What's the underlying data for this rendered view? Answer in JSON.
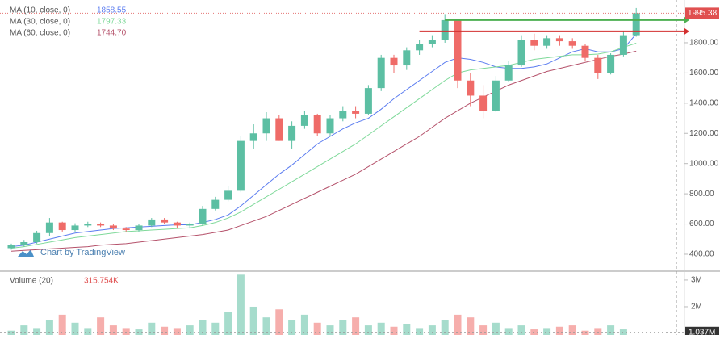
{
  "chart_data": {
    "type": "candlestick",
    "watermark": "Chart by TradingView",
    "ylim": [
      293,
      2083
    ],
    "yticks": [
      {
        "value": 400,
        "label": "400.00"
      },
      {
        "value": 600,
        "label": "600.00"
      },
      {
        "value": 800,
        "label": "800.00"
      },
      {
        "value": 1000,
        "label": "1000.00"
      },
      {
        "value": 1200,
        "label": "1200.00"
      },
      {
        "value": 1400,
        "label": "1400.00"
      },
      {
        "value": 1600,
        "label": "1600.00"
      },
      {
        "value": 1800,
        "label": "1800.00"
      }
    ],
    "up_color": "#5cbfa3",
    "down_color": "#ef6b68",
    "open": [
      440,
      460,
      480,
      540,
      610,
      560,
      590,
      600,
      590,
      570,
      560,
      590,
      630,
      610,
      590,
      600,
      700,
      760,
      820,
      1150,
      1200,
      1300,
      1150,
      1250,
      1320,
      1200,
      1300,
      1350,
      1330,
      1500,
      1700,
      1650,
      1750,
      1790,
      1820,
      1950,
      1550,
      1450,
      1350,
      1550,
      1650,
      1820,
      1780,
      1830,
      1810,
      1780,
      1700,
      1600,
      1720,
      1850
    ],
    "high": [
      470,
      495,
      555,
      640,
      615,
      605,
      615,
      610,
      600,
      580,
      600,
      640,
      640,
      615,
      610,
      720,
      780,
      850,
      1180,
      1260,
      1340,
      1320,
      1280,
      1350,
      1330,
      1320,
      1380,
      1380,
      1520,
      1720,
      1720,
      1770,
      1820,
      1850,
      1990,
      1960,
      1600,
      1520,
      1580,
      1680,
      1850,
      1860,
      1850,
      1850,
      1830,
      1790,
      1720,
      1730,
      1880,
      2030
    ],
    "low": [
      430,
      450,
      470,
      520,
      550,
      550,
      580,
      580,
      560,
      550,
      550,
      580,
      600,
      570,
      570,
      590,
      690,
      750,
      810,
      1100,
      1150,
      1150,
      1100,
      1230,
      1180,
      1180,
      1280,
      1300,
      1320,
      1480,
      1600,
      1620,
      1720,
      1770,
      1800,
      1500,
      1380,
      1300,
      1340,
      1540,
      1640,
      1750,
      1760,
      1780,
      1760,
      1680,
      1560,
      1590,
      1710,
      1840
    ],
    "close": [
      460,
      480,
      540,
      610,
      560,
      590,
      600,
      590,
      570,
      560,
      590,
      630,
      610,
      590,
      600,
      700,
      760,
      820,
      1150,
      1200,
      1300,
      1150,
      1250,
      1320,
      1200,
      1300,
      1350,
      1330,
      1500,
      1700,
      1650,
      1750,
      1790,
      1820,
      1950,
      1550,
      1450,
      1350,
      1550,
      1650,
      1820,
      1780,
      1830,
      1810,
      1780,
      1700,
      1600,
      1720,
      1850,
      1995.38
    ],
    "last_price": {
      "value": 1995.38,
      "label": "1995.38"
    },
    "levels": [
      {
        "value": 1950,
        "color": "#4caf50"
      },
      {
        "value": 1875,
        "color": "#d32f2f"
      }
    ],
    "ma_series": [
      {
        "name": "MA (10, close, 0)",
        "last_label": "1858.55",
        "color": "#5b7cf0",
        "values": [
          450,
          460,
          480,
          500,
          520,
          540,
          550,
          560,
          570,
          575,
          580,
          585,
          590,
          595,
          595,
          610,
          630,
          660,
          720,
          790,
          860,
          930,
          990,
          1060,
          1130,
          1180,
          1230,
          1270,
          1300,
          1360,
          1430,
          1490,
          1550,
          1610,
          1670,
          1700,
          1690,
          1670,
          1640,
          1630,
          1630,
          1640,
          1660,
          1700,
          1740,
          1760,
          1740,
          1740,
          1760,
          1858.55
        ]
      },
      {
        "name": "MA (30, close, 0)",
        "last_label": "1797.33",
        "color": "#7fd99a",
        "values": [
          440,
          450,
          465,
          480,
          495,
          510,
          520,
          530,
          540,
          550,
          555,
          560,
          565,
          570,
          575,
          590,
          610,
          640,
          680,
          730,
          780,
          830,
          880,
          930,
          980,
          1030,
          1080,
          1130,
          1190,
          1250,
          1310,
          1370,
          1430,
          1490,
          1550,
          1600,
          1620,
          1630,
          1640,
          1650,
          1670,
          1690,
          1700,
          1710,
          1720,
          1720,
          1725,
          1740,
          1770,
          1797.33
        ]
      },
      {
        "name": "MA (60, close, 0)",
        "last_label": "1744.70",
        "color": "#b5526b",
        "values": [
          420,
          425,
          430,
          435,
          440,
          445,
          450,
          460,
          465,
          470,
          480,
          490,
          500,
          510,
          520,
          530,
          545,
          560,
          590,
          620,
          650,
          690,
          730,
          770,
          810,
          850,
          890,
          930,
          980,
          1030,
          1080,
          1130,
          1180,
          1240,
          1300,
          1350,
          1400,
          1440,
          1480,
          1520,
          1550,
          1580,
          1610,
          1630,
          1650,
          1670,
          1690,
          1710,
          1725,
          1744.7
        ]
      }
    ],
    "volume": {
      "name": "Volume (20)",
      "last_label": "315.754K",
      "ylim": [
        940000,
        3270000
      ],
      "yticks": [
        {
          "value": 3000000,
          "label": "3M"
        },
        {
          "value": 2000000,
          "label": "2M"
        }
      ],
      "marker": {
        "value": 1037000,
        "label": "1.037M"
      },
      "values": [
        1100000,
        1300000,
        1200000,
        1500000,
        1700000,
        1400000,
        1200000,
        1600000,
        1300000,
        1200000,
        1150000,
        1400000,
        1250000,
        1200000,
        1300000,
        1500000,
        1400000,
        1800000,
        3200000,
        2000000,
        1600000,
        1900000,
        1500000,
        1700000,
        1400000,
        1300000,
        1500000,
        1600000,
        1300000,
        1400000,
        1250000,
        1350000,
        1200000,
        1300000,
        1500000,
        1700000,
        1600000,
        1300000,
        1400000,
        1200000,
        1300000,
        1150000,
        1200000,
        1250000,
        1300000,
        1100000,
        1200000,
        1300000,
        1150000,
        315754
      ]
    }
  }
}
